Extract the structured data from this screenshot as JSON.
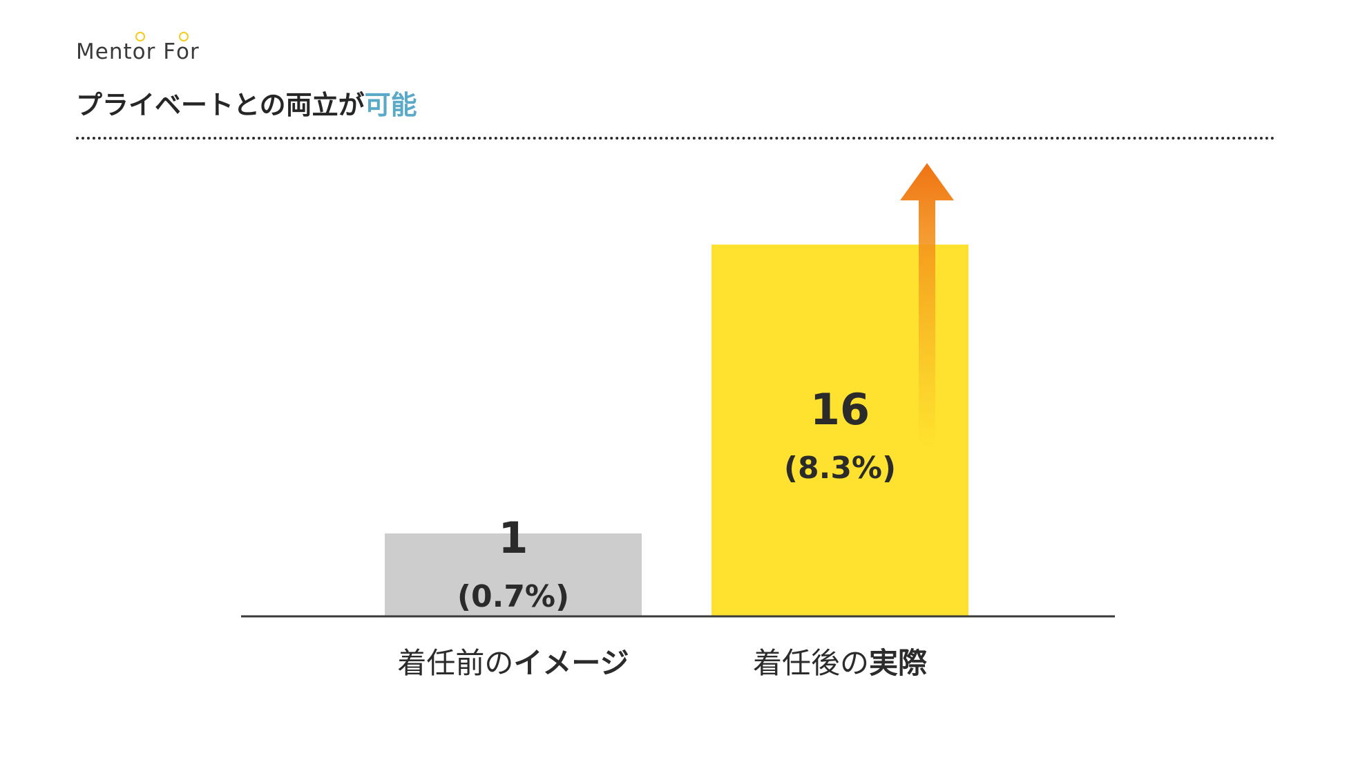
{
  "header": {
    "brand_part1": "Ment",
    "brand_accent1": "o",
    "brand_part2": "r F",
    "brand_accent2": "o",
    "brand_part3": "r",
    "title_main": "プライベートとの両立が",
    "title_accent": "可能"
  },
  "colors": {
    "bar_before": "#cdcdcd",
    "bar_after": "#fee22f",
    "arrow_top": "#ef7312",
    "arrow_bottom": "#fee22f",
    "title_accent": "#5aa9c8",
    "text": "#2b2b2b"
  },
  "chart_data": {
    "type": "bar",
    "categories": [
      "着任前のイメージ",
      "着任後の実際"
    ],
    "category_labels": [
      {
        "normal": "着任前の",
        "bold": "イメージ"
      },
      {
        "normal": "着任後の",
        "bold": "実際"
      }
    ],
    "values": [
      1,
      16
    ],
    "data_labels": [
      "1",
      "16"
    ],
    "percent_labels": [
      "(0.7%)",
      "(8.3%)"
    ],
    "grid": false,
    "annotation": "upward-arrow"
  }
}
